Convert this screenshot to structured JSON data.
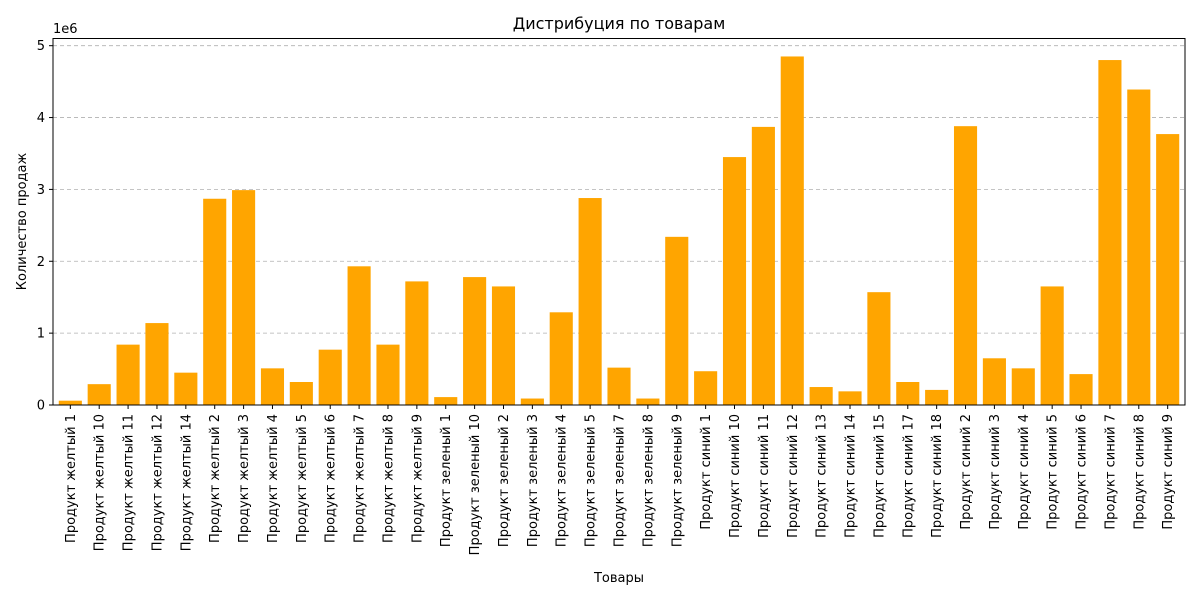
{
  "chart_data": {
    "type": "bar",
    "title": "Дистрибуция по товарам",
    "xlabel": "Товары",
    "ylabel": "Количество продаж",
    "y_offset_label": "1e6",
    "y_scale": 1000000,
    "ylim": [
      0,
      5100000
    ],
    "yticks": [
      0,
      1000000,
      2000000,
      3000000,
      4000000,
      5000000
    ],
    "ytick_labels": [
      "0",
      "1",
      "2",
      "3",
      "4",
      "5"
    ],
    "grid": true,
    "bar_color": "#ffa500",
    "categories": [
      "Продукт желтый 1",
      "Продукт желтый 10",
      "Продукт желтый 11",
      "Продукт желтый 12",
      "Продукт желтый 14",
      "Продукт желтый 2",
      "Продукт желтый 3",
      "Продукт желтый 4",
      "Продукт желтый 5",
      "Продукт желтый 6",
      "Продукт желтый 7",
      "Продукт желтый 8",
      "Продукт желтый 9",
      "Продукт зеленый 1",
      "Продукт зеленый 10",
      "Продукт зеленый 2",
      "Продукт зеленый 3",
      "Продукт зеленый 4",
      "Продукт зеленый 5",
      "Продукт зеленый 7",
      "Продукт зеленый 8",
      "Продукт зеленый 9",
      "Продукт синий 1",
      "Продукт синий 10",
      "Продукт синий 11",
      "Продукт синий 12",
      "Продукт синий 13",
      "Продукт синий 14",
      "Продукт синий 15",
      "Продукт синий 17",
      "Продукт синий 18",
      "Продукт синий 2",
      "Продукт синий 3",
      "Продукт синий 4",
      "Продукт синий 5",
      "Продукт синий 6",
      "Продукт синий 7",
      "Продукт синий 8",
      "Продукт синий 9"
    ],
    "values": [
      60000,
      290000,
      840000,
      1140000,
      450000,
      2870000,
      2990000,
      510000,
      320000,
      770000,
      1930000,
      840000,
      1720000,
      110000,
      1780000,
      1650000,
      90000,
      1290000,
      2880000,
      520000,
      90000,
      2340000,
      470000,
      3450000,
      3870000,
      4850000,
      250000,
      190000,
      1570000,
      320000,
      210000,
      3880000,
      650000,
      510000,
      1650000,
      430000,
      4800000,
      4390000,
      3770000
    ]
  }
}
